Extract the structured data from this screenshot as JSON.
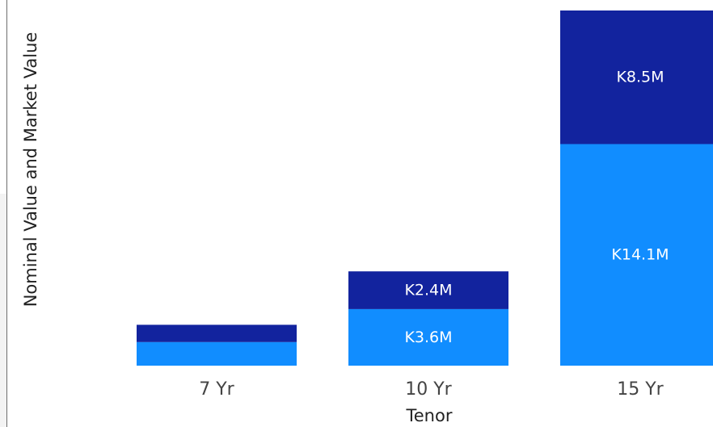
{
  "chart_data": {
    "type": "bar",
    "stacked": true,
    "categories": [
      "7 Yr",
      "10 Yr",
      "15 Yr"
    ],
    "series": [
      {
        "values": [
          1.5,
          3.6,
          14.1
        ],
        "labels": [
          "",
          "K3.6M",
          "K14.1M"
        ],
        "color": "#118dff"
      },
      {
        "values": [
          1.1,
          2.4,
          8.5
        ],
        "labels": [
          "",
          "K2.4M",
          "K8.5M"
        ],
        "color": "#12239e"
      }
    ],
    "xlabel": "Tenor",
    "ylabel": "Nominal Value and Market Value",
    "ylim": [
      0,
      22.6
    ],
    "grid": false,
    "legend": "none"
  }
}
